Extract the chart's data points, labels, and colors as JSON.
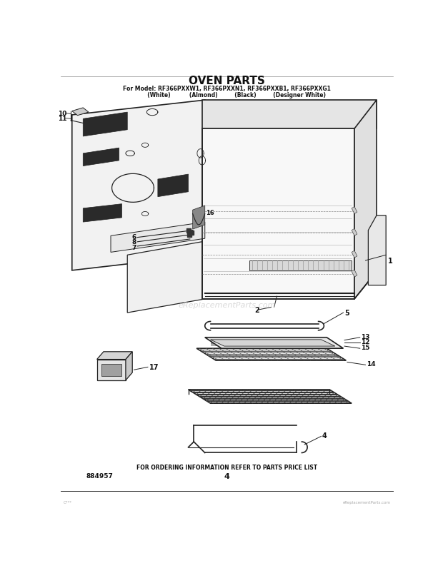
{
  "title": "OVEN PARTS",
  "subtitle": "For Model: RF366PXXW1, RF366PXXN1, RF366PXXB1, RF366PXXG1",
  "subtitle2": "          (White)          (Almond)         (Black)         (Designer White)",
  "footer": "FOR ORDERING INFORMATION REFER TO PARTS PRICE LIST",
  "part_number": "884957",
  "page_number": "4",
  "watermark": "eReplacementParts.com",
  "bg_color": "#ffffff",
  "line_color": "#222222",
  "text_color": "#111111",
  "title_fontsize": 11,
  "subtitle_fontsize": 5.5,
  "footer_fontsize": 5.5
}
